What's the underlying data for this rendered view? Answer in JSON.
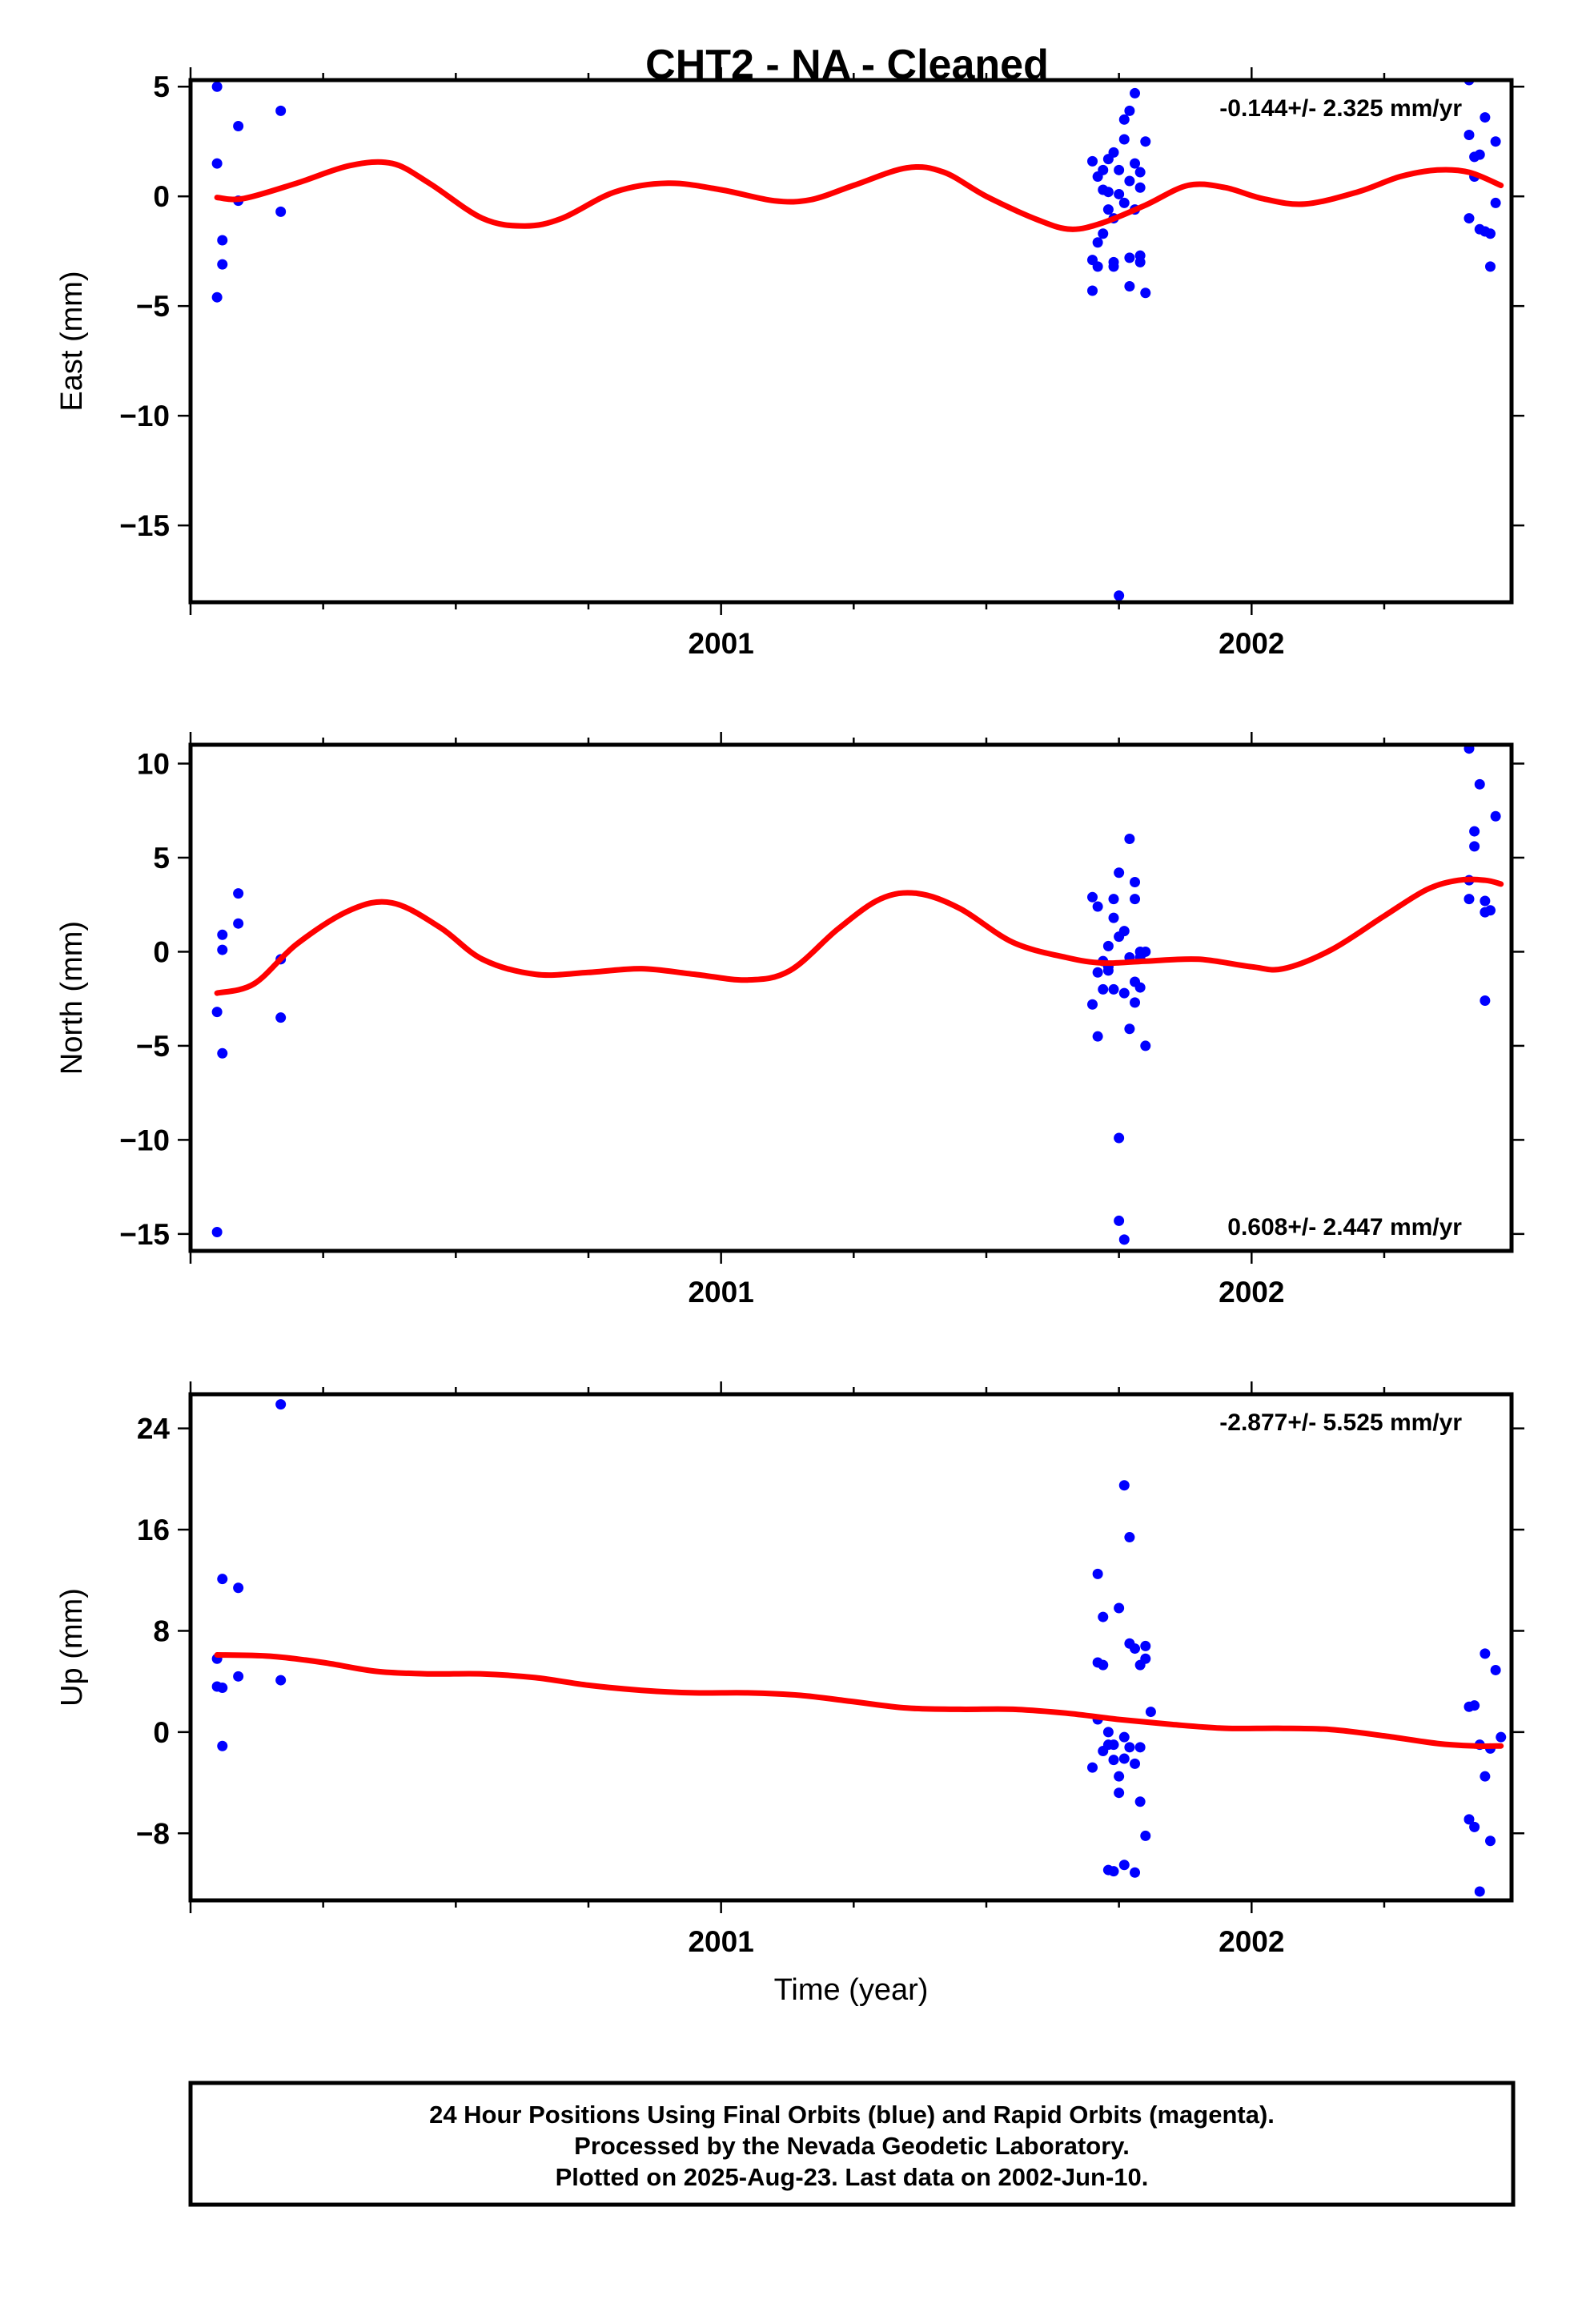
{
  "title": "CHT2  - NA - Cleaned",
  "colors": {
    "data_points": "#0000ff",
    "fit_line": "#ff0000",
    "frame": "#000000"
  },
  "footer": {
    "line1": "24 Hour Positions Using Final Orbits (blue) and Rapid Orbits (magenta).",
    "line2": "Processed by the Nevada Geodetic Laboratory.",
    "line3": "Plotted on 2025-Aug-23. Last data on 2002-Jun-10."
  },
  "chart_data": [
    {
      "type": "scatter",
      "ylabel": "East (mm)",
      "xlabel": "",
      "rate": "-0.144+/- 2.325 mm/yr",
      "rate_position": "top-right",
      "xlim": [
        2000.0,
        2002.49
      ],
      "ylim": [
        -18.5,
        5.3
      ],
      "x_ticks": [
        2001,
        2002
      ],
      "y_ticks": [
        5,
        0,
        -5,
        -10,
        -15
      ],
      "series": [
        {
          "points": [
            [
              2000.05,
              5.0
            ],
            [
              2000.05,
              1.5
            ],
            [
              2000.05,
              -4.6
            ],
            [
              2000.06,
              -2.0
            ],
            [
              2000.06,
              -3.1
            ],
            [
              2000.09,
              3.2
            ],
            [
              2000.09,
              -0.2
            ],
            [
              2000.17,
              3.9
            ],
            [
              2000.17,
              -0.7
            ],
            [
              2001.7,
              1.6
            ],
            [
              2001.7,
              -2.9
            ],
            [
              2001.7,
              -4.3
            ],
            [
              2001.71,
              -3.2
            ],
            [
              2001.71,
              -2.1
            ],
            [
              2001.71,
              0.9
            ],
            [
              2001.72,
              1.2
            ],
            [
              2001.72,
              0.3
            ],
            [
              2001.72,
              -1.7
            ],
            [
              2001.73,
              1.7
            ],
            [
              2001.73,
              -0.6
            ],
            [
              2001.73,
              0.2
            ],
            [
              2001.74,
              2.0
            ],
            [
              2001.74,
              -1.0
            ],
            [
              2001.74,
              -3.2
            ],
            [
              2001.74,
              -3.0
            ],
            [
              2001.75,
              1.2
            ],
            [
              2001.75,
              0.1
            ],
            [
              2001.75,
              -18.2
            ],
            [
              2001.76,
              -0.3
            ],
            [
              2001.76,
              2.6
            ],
            [
              2001.76,
              3.5
            ],
            [
              2001.77,
              -4.1
            ],
            [
              2001.77,
              0.7
            ],
            [
              2001.77,
              3.9
            ],
            [
              2001.77,
              -2.8
            ],
            [
              2001.78,
              4.7
            ],
            [
              2001.78,
              -0.6
            ],
            [
              2001.78,
              1.5
            ],
            [
              2001.79,
              1.1
            ],
            [
              2001.79,
              -2.7
            ],
            [
              2001.79,
              0.4
            ],
            [
              2001.79,
              -3.0
            ],
            [
              2001.8,
              -4.4
            ],
            [
              2001.8,
              2.5
            ],
            [
              2002.41,
              5.3
            ],
            [
              2002.41,
              2.8
            ],
            [
              2002.41,
              -1.0
            ],
            [
              2002.42,
              1.8
            ],
            [
              2002.42,
              0.9
            ],
            [
              2002.43,
              1.9
            ],
            [
              2002.43,
              -1.5
            ],
            [
              2002.44,
              -1.6
            ],
            [
              2002.44,
              3.6
            ],
            [
              2002.45,
              -3.2
            ],
            [
              2002.45,
              -1.7
            ],
            [
              2002.46,
              2.5
            ],
            [
              2002.46,
              -0.3
            ]
          ]
        }
      ],
      "fit": [
        [
          2000.05,
          -0.05
        ],
        [
          2000.1,
          -0.1
        ],
        [
          2000.2,
          0.6
        ],
        [
          2000.3,
          1.4
        ],
        [
          2000.38,
          1.5
        ],
        [
          2000.45,
          0.6
        ],
        [
          2000.55,
          -1.0
        ],
        [
          2000.63,
          -1.35
        ],
        [
          2000.7,
          -1.0
        ],
        [
          2000.8,
          0.2
        ],
        [
          2000.9,
          0.6
        ],
        [
          2001.0,
          0.3
        ],
        [
          2001.1,
          -0.2
        ],
        [
          2001.17,
          -0.15
        ],
        [
          2001.25,
          0.5
        ],
        [
          2001.35,
          1.3
        ],
        [
          2001.42,
          1.1
        ],
        [
          2001.5,
          0.0
        ],
        [
          2001.6,
          -1.1
        ],
        [
          2001.66,
          -1.5
        ],
        [
          2001.72,
          -1.2
        ],
        [
          2001.8,
          -0.4
        ],
        [
          2001.88,
          0.5
        ],
        [
          2001.95,
          0.4
        ],
        [
          2002.02,
          -0.1
        ],
        [
          2002.1,
          -0.35
        ],
        [
          2002.2,
          0.2
        ],
        [
          2002.28,
          0.9
        ],
        [
          2002.35,
          1.2
        ],
        [
          2002.41,
          1.1
        ],
        [
          2002.47,
          0.5
        ]
      ]
    },
    {
      "type": "scatter",
      "ylabel": "North (mm)",
      "xlabel": "",
      "rate": "0.608+/- 2.447 mm/yr",
      "rate_position": "bottom-right",
      "xlim": [
        2000.0,
        2002.49
      ],
      "ylim": [
        -15.9,
        11.0
      ],
      "x_ticks": [
        2001,
        2002
      ],
      "y_ticks": [
        10,
        5,
        0,
        -5,
        -10,
        -15
      ],
      "series": [
        {
          "points": [
            [
              2000.05,
              -3.2
            ],
            [
              2000.05,
              -14.9
            ],
            [
              2000.06,
              0.1
            ],
            [
              2000.06,
              0.9
            ],
            [
              2000.06,
              -5.4
            ],
            [
              2000.09,
              3.1
            ],
            [
              2000.09,
              1.5
            ],
            [
              2000.17,
              -0.4
            ],
            [
              2000.17,
              -3.5
            ],
            [
              2001.7,
              2.9
            ],
            [
              2001.7,
              -2.8
            ],
            [
              2001.71,
              -1.1
            ],
            [
              2001.71,
              2.4
            ],
            [
              2001.71,
              -4.5
            ],
            [
              2001.72,
              -0.5
            ],
            [
              2001.72,
              -2.0
            ],
            [
              2001.73,
              -1.0
            ],
            [
              2001.73,
              0.3
            ],
            [
              2001.73,
              -0.8
            ],
            [
              2001.74,
              2.8
            ],
            [
              2001.74,
              1.8
            ],
            [
              2001.74,
              -2.0
            ],
            [
              2001.75,
              4.2
            ],
            [
              2001.75,
              0.8
            ],
            [
              2001.75,
              -9.9
            ],
            [
              2001.75,
              -14.3
            ],
            [
              2001.76,
              -15.3
            ],
            [
              2001.76,
              -2.2
            ],
            [
              2001.76,
              1.1
            ],
            [
              2001.77,
              -4.1
            ],
            [
              2001.77,
              6.0
            ],
            [
              2001.77,
              -0.3
            ],
            [
              2001.78,
              -2.7
            ],
            [
              2001.78,
              -1.6
            ],
            [
              2001.78,
              2.8
            ],
            [
              2001.78,
              3.7
            ],
            [
              2001.79,
              0.0
            ],
            [
              2001.79,
              -0.3
            ],
            [
              2001.79,
              -1.9
            ],
            [
              2001.8,
              -5.0
            ],
            [
              2001.8,
              0.0
            ],
            [
              2002.41,
              10.8
            ],
            [
              2002.41,
              3.8
            ],
            [
              2002.41,
              2.8
            ],
            [
              2002.42,
              5.6
            ],
            [
              2002.42,
              6.4
            ],
            [
              2002.43,
              8.9
            ],
            [
              2002.44,
              2.1
            ],
            [
              2002.44,
              2.7
            ],
            [
              2002.44,
              -2.6
            ],
            [
              2002.45,
              2.2
            ],
            [
              2002.46,
              7.2
            ]
          ]
        }
      ],
      "fit": [
        [
          2000.05,
          -2.2
        ],
        [
          2000.12,
          -1.7
        ],
        [
          2000.2,
          0.4
        ],
        [
          2000.3,
          2.2
        ],
        [
          2000.38,
          2.6
        ],
        [
          2000.47,
          1.3
        ],
        [
          2000.55,
          -0.4
        ],
        [
          2000.65,
          -1.2
        ],
        [
          2000.75,
          -1.1
        ],
        [
          2000.85,
          -0.9
        ],
        [
          2000.95,
          -1.2
        ],
        [
          2001.05,
          -1.5
        ],
        [
          2001.13,
          -1.0
        ],
        [
          2001.22,
          1.2
        ],
        [
          2001.3,
          2.8
        ],
        [
          2001.37,
          3.1
        ],
        [
          2001.45,
          2.3
        ],
        [
          2001.55,
          0.5
        ],
        [
          2001.65,
          -0.3
        ],
        [
          2001.72,
          -0.6
        ],
        [
          2001.8,
          -0.5
        ],
        [
          2001.9,
          -0.4
        ],
        [
          2002.0,
          -0.8
        ],
        [
          2002.06,
          -0.9
        ],
        [
          2002.15,
          0.1
        ],
        [
          2002.25,
          1.9
        ],
        [
          2002.33,
          3.3
        ],
        [
          2002.39,
          3.8
        ],
        [
          2002.44,
          3.8
        ],
        [
          2002.47,
          3.6
        ]
      ]
    },
    {
      "type": "scatter",
      "ylabel": "Up (mm)",
      "xlabel": "Time (year)",
      "rate": "-2.877+/- 5.525 mm/yr",
      "rate_position": "top-right",
      "xlim": [
        2000.0,
        2002.49
      ],
      "ylim": [
        -13.3,
        26.7
      ],
      "x_ticks": [
        2001,
        2002
      ],
      "y_ticks": [
        24,
        16,
        8,
        0,
        -8
      ],
      "series": [
        {
          "points": [
            [
              2000.05,
              5.8
            ],
            [
              2000.05,
              3.6
            ],
            [
              2000.06,
              3.5
            ],
            [
              2000.06,
              12.1
            ],
            [
              2000.06,
              -1.1
            ],
            [
              2000.09,
              11.4
            ],
            [
              2000.09,
              4.4
            ],
            [
              2000.17,
              25.9
            ],
            [
              2000.17,
              4.1
            ],
            [
              2001.7,
              -2.8
            ],
            [
              2001.71,
              5.5
            ],
            [
              2001.71,
              1.0
            ],
            [
              2001.71,
              12.5
            ],
            [
              2001.72,
              5.3
            ],
            [
              2001.72,
              -1.5
            ],
            [
              2001.72,
              9.1
            ],
            [
              2001.73,
              -1.0
            ],
            [
              2001.73,
              0.0
            ],
            [
              2001.73,
              -10.9
            ],
            [
              2001.74,
              -2.2
            ],
            [
              2001.74,
              -1.0
            ],
            [
              2001.74,
              -11.0
            ],
            [
              2001.75,
              9.8
            ],
            [
              2001.75,
              -4.8
            ],
            [
              2001.75,
              -3.5
            ],
            [
              2001.76,
              19.5
            ],
            [
              2001.76,
              -10.5
            ],
            [
              2001.76,
              -2.1
            ],
            [
              2001.76,
              -0.4
            ],
            [
              2001.77,
              15.4
            ],
            [
              2001.77,
              7.0
            ],
            [
              2001.77,
              -1.2
            ],
            [
              2001.78,
              6.6
            ],
            [
              2001.78,
              -11.1
            ],
            [
              2001.78,
              -2.5
            ],
            [
              2001.79,
              5.3
            ],
            [
              2001.79,
              -1.2
            ],
            [
              2001.79,
              -5.5
            ],
            [
              2001.8,
              6.8
            ],
            [
              2001.8,
              5.8
            ],
            [
              2001.8,
              -8.2
            ],
            [
              2001.81,
              1.6
            ],
            [
              2002.41,
              -6.9
            ],
            [
              2002.41,
              2.0
            ],
            [
              2002.42,
              -7.5
            ],
            [
              2002.42,
              2.1
            ],
            [
              2002.43,
              -1.0
            ],
            [
              2002.43,
              -12.6
            ],
            [
              2002.44,
              -3.5
            ],
            [
              2002.44,
              6.2
            ],
            [
              2002.45,
              -8.6
            ],
            [
              2002.45,
              -1.3
            ],
            [
              2002.46,
              4.9
            ],
            [
              2002.47,
              -0.4
            ]
          ]
        }
      ],
      "fit": [
        [
          2000.05,
          6.1
        ],
        [
          2000.15,
          6.0
        ],
        [
          2000.25,
          5.5
        ],
        [
          2000.35,
          4.8
        ],
        [
          2000.45,
          4.6
        ],
        [
          2000.55,
          4.6
        ],
        [
          2000.65,
          4.3
        ],
        [
          2000.75,
          3.7
        ],
        [
          2000.85,
          3.3
        ],
        [
          2000.95,
          3.1
        ],
        [
          2001.05,
          3.1
        ],
        [
          2001.15,
          2.9
        ],
        [
          2001.25,
          2.4
        ],
        [
          2001.35,
          1.9
        ],
        [
          2001.45,
          1.8
        ],
        [
          2001.55,
          1.8
        ],
        [
          2001.65,
          1.5
        ],
        [
          2001.75,
          1.0
        ],
        [
          2001.85,
          0.6
        ],
        [
          2001.95,
          0.3
        ],
        [
          2002.05,
          0.3
        ],
        [
          2002.15,
          0.2
        ],
        [
          2002.25,
          -0.3
        ],
        [
          2002.35,
          -0.9
        ],
        [
          2002.42,
          -1.1
        ],
        [
          2002.47,
          -1.1
        ]
      ]
    }
  ]
}
